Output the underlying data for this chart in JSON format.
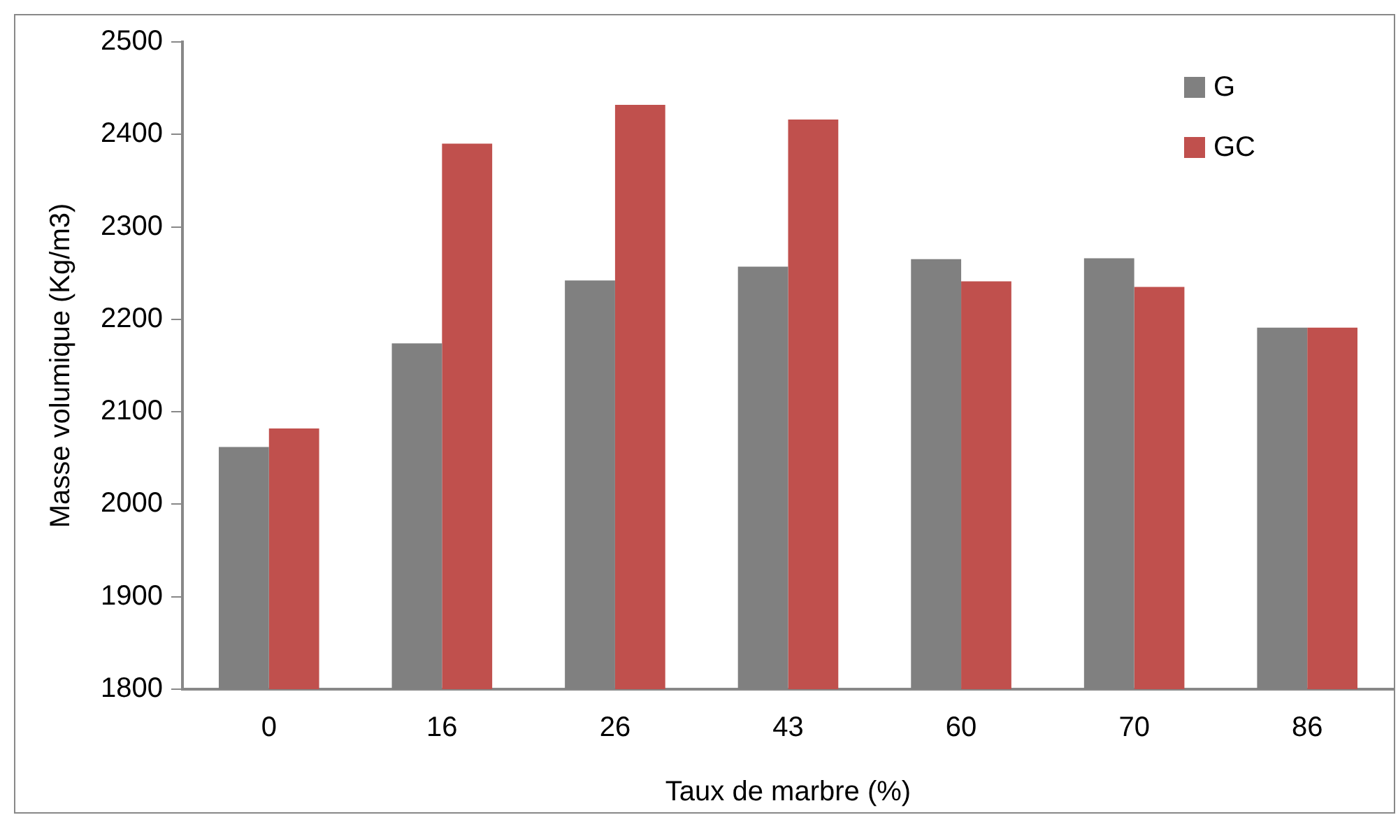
{
  "chart_data": {
    "type": "bar",
    "xlabel": "Taux de marbre (%)",
    "ylabel": "Masse volumique (Kg/m3)",
    "categories": [
      "0",
      "16",
      "26",
      "43",
      "60",
      "70",
      "86"
    ],
    "series": [
      {
        "name": "G",
        "color": "#808080",
        "values": [
          2062,
          2174,
          2242,
          2257,
          2265,
          2266,
          2191
        ]
      },
      {
        "name": "GC",
        "color": "#c0504d",
        "values": [
          2082,
          2390,
          2432,
          2416,
          2241,
          2235,
          2191
        ]
      }
    ],
    "ylim": [
      1800,
      2500
    ],
    "yticks": [
      1800,
      1900,
      2000,
      2100,
      2200,
      2300,
      2400,
      2500
    ],
    "grid": false,
    "legend": "top right"
  }
}
